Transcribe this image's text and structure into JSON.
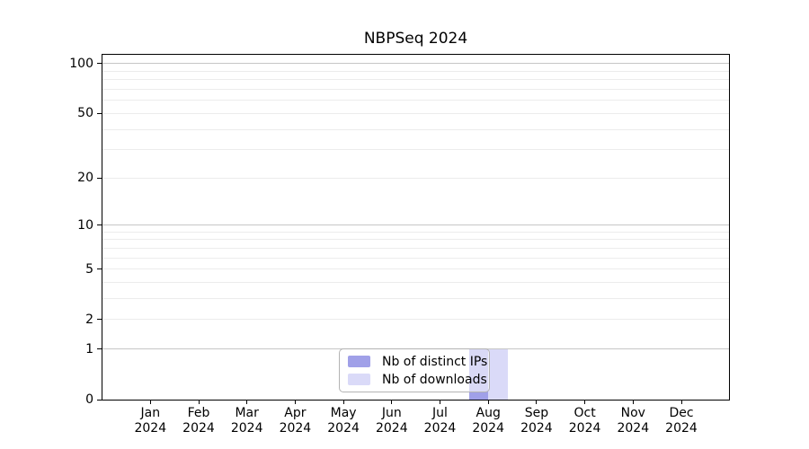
{
  "title": "NBPSeq 2024",
  "chart_data": {
    "type": "bar",
    "title": "NBPSeq 2024",
    "bar_layout": "grouped",
    "categories": [
      "Jan 2024",
      "Feb 2024",
      "Mar 2024",
      "Apr 2024",
      "May 2024",
      "Jun 2024",
      "Jul 2024",
      "Aug 2024",
      "Sep 2024",
      "Oct 2024",
      "Nov 2024",
      "Dec 2024"
    ],
    "series": [
      {
        "name": "Nb of distinct IPs",
        "color": "#a0a0e8",
        "values": [
          0,
          0,
          0,
          0,
          0,
          0,
          0,
          1,
          0,
          0,
          0,
          0
        ]
      },
      {
        "name": "Nb of downloads",
        "color": "#dadaf8",
        "values": [
          0,
          0,
          0,
          0,
          0,
          0,
          0,
          1,
          0,
          0,
          0,
          0
        ]
      }
    ],
    "xlabel": "",
    "ylabel": "",
    "yscale": "log1p",
    "ylim": [
      0,
      113
    ],
    "y_ticks": [
      0,
      1,
      2,
      5,
      10,
      20,
      50,
      100
    ],
    "y_tick_labels": [
      "0",
      "1",
      "2",
      "5",
      "10",
      "20",
      "50",
      "100"
    ],
    "y_major_gridlines": [
      1,
      10,
      100
    ],
    "y_minor_gridlines": [
      2,
      3,
      4,
      5,
      6,
      7,
      8,
      9,
      20,
      30,
      40,
      50,
      60,
      70,
      80,
      90
    ],
    "grid": "horizontal",
    "legend_position": "lower center"
  },
  "colors": {
    "background": "#ffffff",
    "frame": "#000000",
    "major_grid": "#c6c6c6",
    "minor_grid": "#ececec",
    "legend_border": "#b3b3b3",
    "bar_distinct_ips": "#a0a0e8",
    "bar_downloads": "#dadaf8"
  }
}
